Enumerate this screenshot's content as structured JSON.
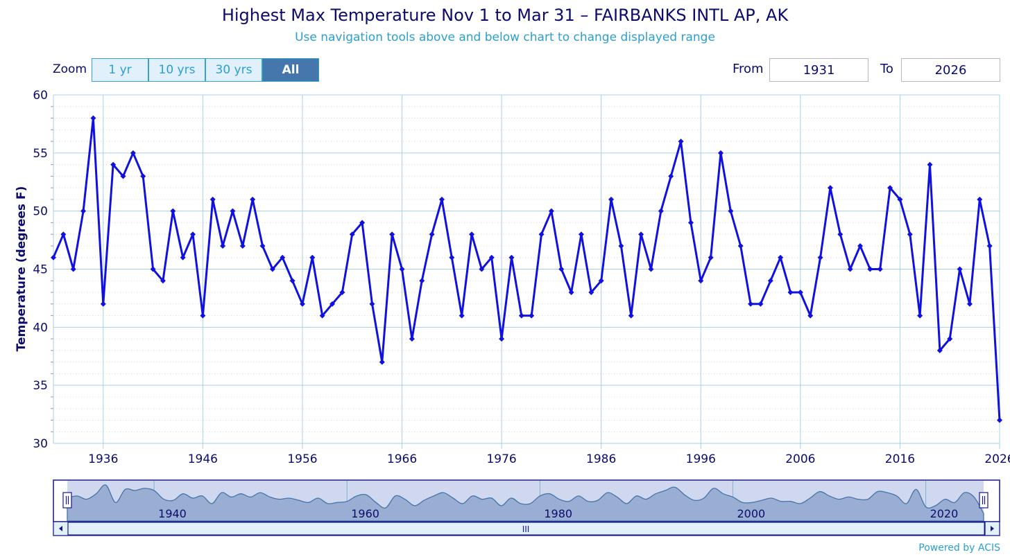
{
  "header": {
    "title": "Highest Max Temperature Nov 1 to Mar 31 – FAIRBANKS INTL AP, AK",
    "subtitle": "Use navigation tools above and below chart to change displayed range"
  },
  "zoom": {
    "label": "Zoom",
    "buttons": [
      "1 yr",
      "10 yrs",
      "30 yrs",
      "All"
    ],
    "selected": "All"
  },
  "range": {
    "from_label": "From",
    "from_value": "1931",
    "to_label": "To",
    "to_value": "2026"
  },
  "navigator": {
    "labels": [
      "1940",
      "1960",
      "1980",
      "2000",
      "2020"
    ],
    "scroll_grip": "III"
  },
  "credit": "Powered by ACIS",
  "colors": {
    "series": "#1010e0",
    "grid": "#a6d0ea",
    "text": "#0b0b6e",
    "accent": "#2a9fd0"
  },
  "chart_data": {
    "type": "line",
    "title": "Highest Max Temperature Nov 1 to Mar 31 – FAIRBANKS INTL AP, AK",
    "xlabel": "",
    "ylabel": "Temperature (degrees F)",
    "xlim": [
      1931,
      2026
    ],
    "ylim": [
      30,
      60
    ],
    "xticks": [
      1936,
      1946,
      1956,
      1966,
      1976,
      1986,
      1996,
      2006,
      2016,
      2026
    ],
    "yticks": [
      30,
      35,
      40,
      45,
      50,
      55,
      60
    ],
    "series": [
      {
        "name": "Highest Max Temperature",
        "x": [
          1931,
          1932,
          1933,
          1934,
          1935,
          1936,
          1937,
          1938,
          1939,
          1940,
          1941,
          1942,
          1943,
          1944,
          1945,
          1946,
          1947,
          1948,
          1949,
          1950,
          1951,
          1952,
          1953,
          1954,
          1955,
          1956,
          1957,
          1958,
          1959,
          1960,
          1961,
          1962,
          1963,
          1964,
          1965,
          1966,
          1967,
          1968,
          1969,
          1970,
          1971,
          1972,
          1973,
          1974,
          1975,
          1976,
          1977,
          1978,
          1979,
          1980,
          1981,
          1982,
          1983,
          1984,
          1985,
          1986,
          1987,
          1988,
          1989,
          1990,
          1991,
          1992,
          1993,
          1994,
          1995,
          1996,
          1997,
          1998,
          1999,
          2000,
          2001,
          2002,
          2003,
          2004,
          2005,
          2006,
          2007,
          2008,
          2009,
          2010,
          2011,
          2012,
          2013,
          2014,
          2015,
          2016,
          2017,
          2018,
          2019,
          2020,
          2021,
          2022,
          2023,
          2024,
          2025,
          2026
        ],
        "values": [
          46,
          48,
          45,
          50,
          58,
          42,
          54,
          53,
          55,
          53,
          45,
          44,
          50,
          46,
          48,
          41,
          51,
          47,
          50,
          47,
          51,
          47,
          45,
          46,
          44,
          42,
          46,
          41,
          42,
          43,
          48,
          49,
          42,
          37,
          48,
          45,
          39,
          44,
          48,
          51,
          46,
          41,
          48,
          45,
          46,
          39,
          46,
          41,
          41,
          48,
          50,
          45,
          43,
          48,
          43,
          44,
          51,
          47,
          41,
          48,
          45,
          50,
          53,
          56,
          49,
          44,
          46,
          55,
          50,
          47,
          42,
          42,
          44,
          46,
          43,
          43,
          41,
          46,
          52,
          48,
          45,
          47,
          45,
          45,
          52,
          51,
          48,
          41,
          54,
          38,
          39,
          45,
          42,
          51,
          47,
          32
        ]
      }
    ]
  }
}
